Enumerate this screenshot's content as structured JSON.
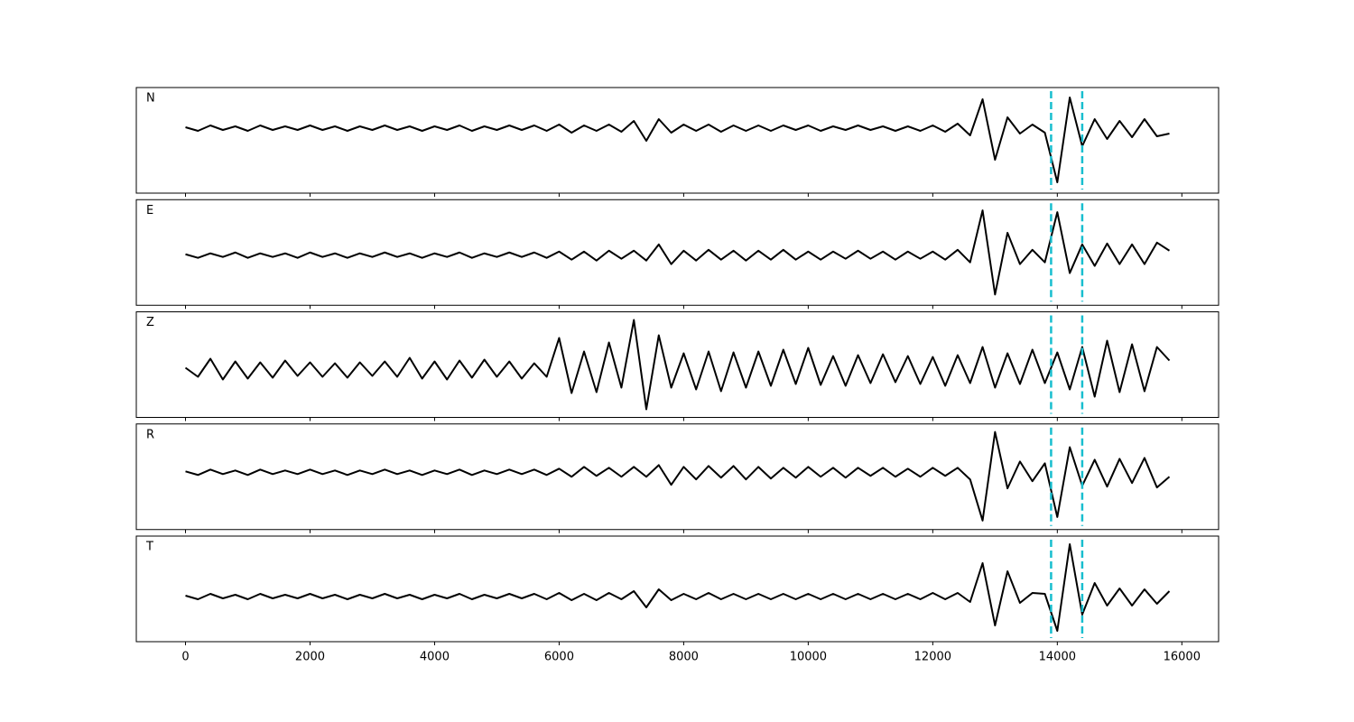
{
  "chart_data": {
    "type": "line",
    "layout": "stacked",
    "x": [
      0,
      200,
      400,
      600,
      800,
      1000,
      1200,
      1400,
      1600,
      1800,
      2000,
      2200,
      2400,
      2600,
      2800,
      3000,
      3200,
      3400,
      3600,
      3800,
      4000,
      4200,
      4400,
      4600,
      4800,
      5000,
      5200,
      5400,
      5600,
      5800,
      6000,
      6200,
      6400,
      6600,
      6800,
      7000,
      7200,
      7400,
      7600,
      7800,
      8000,
      8200,
      8400,
      8600,
      8800,
      9000,
      9200,
      9400,
      9600,
      9800,
      10000,
      10200,
      10400,
      10600,
      10800,
      11000,
      11200,
      11400,
      11600,
      11800,
      12000,
      12200,
      12400,
      12600,
      12800,
      13000,
      13200,
      13400,
      13600,
      13800,
      14000,
      14200,
      14400,
      14600,
      14800,
      15000,
      15200,
      15400,
      15600,
      15800
    ],
    "xlim": [
      -790,
      16590
    ],
    "xticks": [
      0,
      2000,
      4000,
      6000,
      8000,
      10000,
      12000,
      14000,
      16000
    ],
    "vlines": [
      13900,
      14400
    ],
    "vline_color": "#17becf",
    "line_color": "#000000",
    "series": [
      {
        "name": "N",
        "ylim": [
          -7.2,
          4.5
        ],
        "values": [
          0.1,
          -0.3,
          0.3,
          -0.2,
          0.2,
          -0.3,
          0.3,
          -0.2,
          0.2,
          -0.2,
          0.3,
          -0.2,
          0.2,
          -0.3,
          0.2,
          -0.2,
          0.3,
          -0.2,
          0.2,
          -0.3,
          0.2,
          -0.2,
          0.3,
          -0.3,
          0.2,
          -0.2,
          0.3,
          -0.2,
          0.3,
          -0.3,
          0.4,
          -0.5,
          0.3,
          -0.3,
          0.4,
          -0.4,
          0.8,
          -1.4,
          1.0,
          -0.5,
          0.4,
          -0.3,
          0.4,
          -0.4,
          0.3,
          -0.3,
          0.3,
          -0.3,
          0.3,
          -0.2,
          0.3,
          -0.3,
          0.2,
          -0.2,
          0.3,
          -0.2,
          0.2,
          -0.3,
          0.2,
          -0.3,
          0.3,
          -0.4,
          0.5,
          -0.8,
          3.2,
          -3.5,
          1.2,
          -0.6,
          0.4,
          -0.5,
          -6.0,
          3.4,
          -2.0,
          1.0,
          -1.2,
          0.8,
          -1.0,
          1.0,
          -0.9,
          -0.6
        ]
      },
      {
        "name": "E",
        "ylim": [
          -5.6,
          6.2
        ],
        "values": [
          0.1,
          -0.3,
          0.2,
          -0.2,
          0.3,
          -0.3,
          0.2,
          -0.2,
          0.2,
          -0.3,
          0.3,
          -0.2,
          0.2,
          -0.3,
          0.2,
          -0.2,
          0.3,
          -0.2,
          0.2,
          -0.3,
          0.2,
          -0.2,
          0.3,
          -0.3,
          0.2,
          -0.2,
          0.3,
          -0.2,
          0.3,
          -0.3,
          0.4,
          -0.5,
          0.4,
          -0.6,
          0.5,
          -0.4,
          0.5,
          -0.6,
          1.2,
          -1.0,
          0.5,
          -0.6,
          0.6,
          -0.5,
          0.5,
          -0.6,
          0.5,
          -0.5,
          0.6,
          -0.5,
          0.4,
          -0.5,
          0.4,
          -0.4,
          0.5,
          -0.4,
          0.4,
          -0.5,
          0.4,
          -0.4,
          0.4,
          -0.5,
          0.6,
          -0.8,
          5.0,
          -4.4,
          2.5,
          -1.0,
          0.6,
          -0.8,
          4.8,
          -2.0,
          1.2,
          -1.2,
          1.3,
          -1.0,
          1.2,
          -1.0,
          1.4,
          0.5
        ]
      },
      {
        "name": "Z",
        "ylim": [
          -5.3,
          6.4
        ],
        "values": [
          0.2,
          -0.8,
          1.2,
          -1.1,
          0.9,
          -1.0,
          0.8,
          -0.9,
          1.0,
          -0.7,
          0.8,
          -0.8,
          0.7,
          -0.9,
          0.8,
          -0.7,
          0.9,
          -0.8,
          1.3,
          -1.0,
          0.9,
          -1.1,
          1.0,
          -0.9,
          1.1,
          -0.8,
          0.9,
          -1.0,
          0.7,
          -0.8,
          3.5,
          -2.6,
          2.0,
          -2.5,
          3.0,
          -2.0,
          5.5,
          -4.4,
          3.8,
          -2.0,
          1.8,
          -2.2,
          2.0,
          -2.4,
          1.9,
          -2.0,
          2.0,
          -1.8,
          2.2,
          -1.6,
          2.4,
          -1.7,
          1.5,
          -1.8,
          1.6,
          -1.5,
          1.7,
          -1.4,
          1.5,
          -1.6,
          1.4,
          -1.8,
          1.6,
          -1.5,
          2.5,
          -2.0,
          1.8,
          -1.6,
          2.2,
          -1.5,
          1.9,
          -2.2,
          2.5,
          -3.0,
          3.2,
          -2.5,
          2.8,
          -2.4,
          2.5,
          1.0
        ]
      },
      {
        "name": "R",
        "ylim": [
          -6.4,
          5.4
        ],
        "values": [
          0.1,
          -0.3,
          0.3,
          -0.2,
          0.2,
          -0.3,
          0.3,
          -0.2,
          0.2,
          -0.2,
          0.3,
          -0.2,
          0.2,
          -0.3,
          0.2,
          -0.2,
          0.3,
          -0.2,
          0.2,
          -0.3,
          0.2,
          -0.2,
          0.3,
          -0.3,
          0.2,
          -0.2,
          0.3,
          -0.2,
          0.3,
          -0.3,
          0.4,
          -0.5,
          0.6,
          -0.4,
          0.5,
          -0.5,
          0.6,
          -0.5,
          0.8,
          -1.4,
          0.6,
          -0.8,
          0.7,
          -0.6,
          0.7,
          -0.8,
          0.6,
          -0.7,
          0.5,
          -0.6,
          0.6,
          -0.5,
          0.5,
          -0.6,
          0.5,
          -0.4,
          0.5,
          -0.5,
          0.4,
          -0.5,
          0.5,
          -0.4,
          0.5,
          -0.8,
          -5.4,
          4.5,
          -1.8,
          1.2,
          -1.0,
          1.0,
          -5.0,
          2.8,
          -1.5,
          1.4,
          -1.6,
          1.5,
          -1.2,
          1.6,
          -1.7,
          -0.5
        ]
      },
      {
        "name": "T",
        "ylim": [
          -5.0,
          6.7
        ],
        "values": [
          0.1,
          -0.3,
          0.3,
          -0.2,
          0.2,
          -0.3,
          0.3,
          -0.2,
          0.2,
          -0.2,
          0.3,
          -0.2,
          0.2,
          -0.3,
          0.2,
          -0.2,
          0.3,
          -0.2,
          0.2,
          -0.3,
          0.2,
          -0.2,
          0.3,
          -0.3,
          0.2,
          -0.2,
          0.3,
          -0.2,
          0.3,
          -0.3,
          0.4,
          -0.4,
          0.3,
          -0.4,
          0.4,
          -0.3,
          0.6,
          -1.2,
          0.8,
          -0.4,
          0.3,
          -0.3,
          0.4,
          -0.3,
          0.3,
          -0.3,
          0.3,
          -0.3,
          0.3,
          -0.3,
          0.3,
          -0.3,
          0.3,
          -0.3,
          0.3,
          -0.3,
          0.3,
          -0.3,
          0.3,
          -0.3,
          0.4,
          -0.3,
          0.4,
          -0.6,
          3.7,
          -3.2,
          2.8,
          -0.7,
          0.4,
          0.3,
          -3.8,
          5.8,
          -2.0,
          1.5,
          -1.0,
          0.9,
          -1.0,
          0.8,
          -0.8,
          0.6
        ]
      }
    ]
  }
}
